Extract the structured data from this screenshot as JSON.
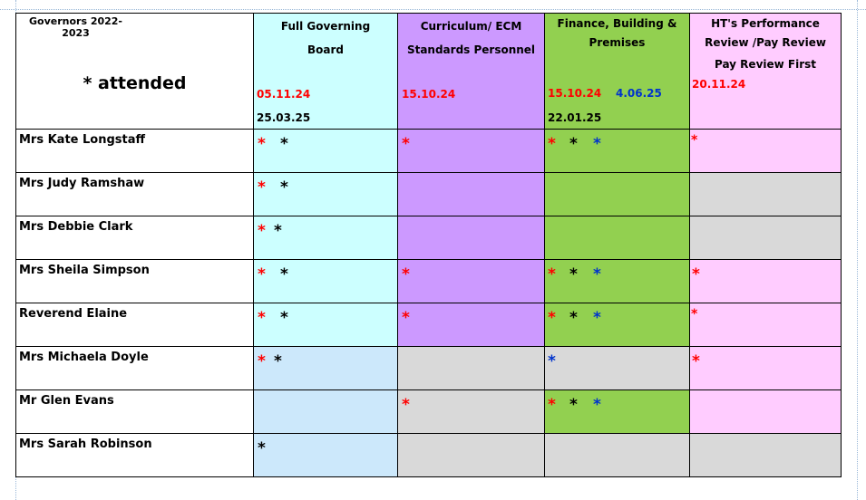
{
  "header": {
    "governors_year": "Governors 2022-2023",
    "legend": "* attended",
    "fgb": {
      "title_line1": "Full Governing",
      "title_line2": "Board",
      "date1": "05.11.24",
      "date2": "25.03.25"
    },
    "curriculum": {
      "title_line1": "Curriculum/  ECM",
      "title_line2": "Standards   Personnel",
      "date1": "15.10.24"
    },
    "finance": {
      "title_line1": "Finance, Building &",
      "title_line2": "Premises",
      "date1": "15.10.24",
      "date2": "4.06.25",
      "date3": "22.01.25"
    },
    "ht": {
      "title_line1": "HT's Performance",
      "title_line2": "Review /Pay Review",
      "title_line3": "Pay Review First",
      "date1": "20.11.24"
    }
  },
  "colors": {
    "red": "#ff0000",
    "blue": "#0033cc",
    "black": "#000000",
    "cyan": "#ccffff",
    "light_blue": "#cce8fb",
    "purple": "#cc99ff",
    "green": "#92d050",
    "pink": "#ffccff",
    "grey": "#d9d9d9"
  },
  "rows": [
    {
      "name": "Mrs Kate Longstaff",
      "fgb": "* *",
      "cur": "*",
      "fin": "* * *",
      "ht": "*"
    },
    {
      "name": "Mrs Judy Ramshaw",
      "fgb": "* *",
      "cur": "",
      "fin": "",
      "ht": ""
    },
    {
      "name": "Mrs Debbie Clark",
      "fgb": "* *",
      "cur": "",
      "fin": "",
      "ht": ""
    },
    {
      "name": "Mrs Sheila Simpson",
      "fgb": "* *",
      "cur": "*",
      "fin": "* * *",
      "ht": "*"
    },
    {
      "name": "Reverend Elaine",
      "fgb": "* *",
      "cur": "*",
      "fin": "* * *",
      "ht": "*"
    },
    {
      "name": "Mrs Michaela Doyle",
      "fgb": "* *",
      "cur": "",
      "fin": "*",
      "ht": "*"
    },
    {
      "name": "Mr Glen Evans",
      "fgb": "",
      "cur": "*",
      "fin": "* * *",
      "ht": ""
    },
    {
      "name": "Mrs Sarah Robinson",
      "fgb": "*",
      "cur": "",
      "fin": "",
      "ht": ""
    }
  ]
}
